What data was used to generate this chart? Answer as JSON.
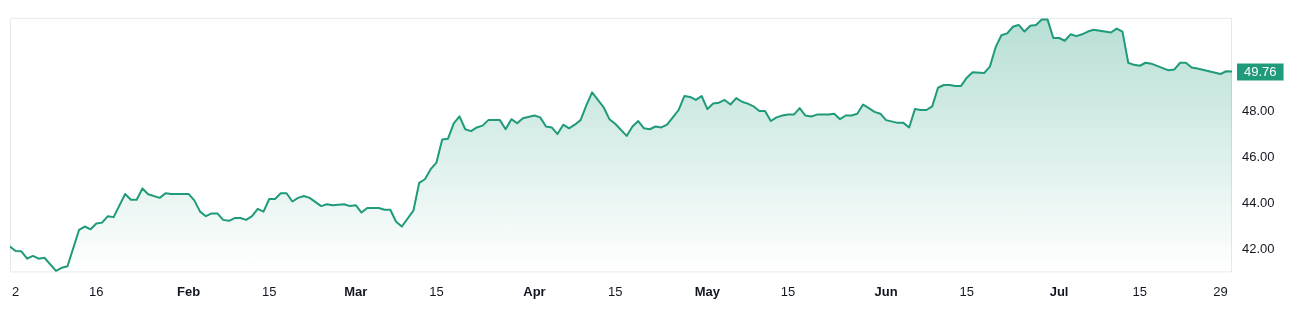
{
  "chart_data": {
    "type": "area",
    "x": [
      "--01-01",
      "--01-02",
      "--01-03",
      "--01-04",
      "--01-05",
      "--01-06",
      "--01-07",
      "--01-09",
      "--01-10",
      "--01-11",
      "--01-13",
      "--01-14",
      "--01-15",
      "--01-16",
      "--01-17",
      "--01-18",
      "--01-19",
      "--01-21",
      "--01-22",
      "--01-23",
      "--01-24",
      "--01-25",
      "--01-27",
      "--01-28",
      "--01-29",
      "--02-01",
      "--02-02",
      "--02-03",
      "--02-04",
      "--02-05",
      "--02-06",
      "--02-07",
      "--02-08",
      "--02-09",
      "--02-10",
      "--02-11",
      "--02-12",
      "--02-13",
      "--02-14",
      "--02-15",
      "--02-16",
      "--02-17",
      "--02-18",
      "--02-19",
      "--02-20",
      "--02-21",
      "--02-22",
      "--02-24",
      "--02-25",
      "--02-26",
      "--02-28",
      "--02-29",
      "--03-01",
      "--03-02",
      "--03-03",
      "--03-05",
      "--03-06",
      "--03-07",
      "--03-08",
      "--03-09",
      "--03-11",
      "--03-12",
      "--03-13",
      "--03-14",
      "--03-15",
      "--03-16",
      "--03-17",
      "--03-18",
      "--03-19",
      "--03-20",
      "--03-21",
      "--03-22",
      "--03-23",
      "--03-24",
      "--03-26",
      "--03-27",
      "--03-28",
      "--03-29",
      "--03-30",
      "--04-01",
      "--04-02",
      "--04-03",
      "--04-04",
      "--04-05",
      "--04-06",
      "--04-07",
      "--04-08",
      "--04-09",
      "--04-10",
      "--04-11",
      "--04-12",
      "--04-13",
      "--04-14",
      "--04-15",
      "--04-17",
      "--04-18",
      "--04-19",
      "--04-20",
      "--04-21",
      "--04-22",
      "--04-23",
      "--04-24",
      "--04-25",
      "--04-26",
      "--04-27",
      "--04-28",
      "--04-29",
      "--04-30",
      "--05-01",
      "--05-02",
      "--05-03",
      "--05-04",
      "--05-05",
      "--05-06",
      "--05-07",
      "--05-08",
      "--05-09",
      "--05-10",
      "--05-11",
      "--05-12",
      "--05-13",
      "--05-14",
      "--05-15",
      "--05-16",
      "--05-17",
      "--05-18",
      "--05-19",
      "--05-20",
      "--05-22",
      "--05-23",
      "--05-24",
      "--05-25",
      "--05-26",
      "--05-27",
      "--05-28",
      "--05-29",
      "--05-30",
      "--05-31",
      "--06-01",
      "--06-03",
      "--06-04",
      "--06-05",
      "--06-06",
      "--06-07",
      "--06-08",
      "--06-09",
      "--06-10",
      "--06-11",
      "--06-12",
      "--06-13",
      "--06-14",
      "--06-15",
      "--06-16",
      "--06-18",
      "--06-19",
      "--06-20",
      "--06-21",
      "--06-22",
      "--06-23",
      "--06-24",
      "--06-25",
      "--06-26",
      "--06-27",
      "--06-28",
      "--06-29",
      "--06-30",
      "--07-01",
      "--07-02",
      "--07-03",
      "--07-04",
      "--07-05",
      "--07-06",
      "--07-07",
      "--07-10",
      "--07-11",
      "--07-12",
      "--07-13",
      "--07-14",
      "--07-15",
      "--07-16",
      "--07-17",
      "--07-20",
      "--07-21",
      "--07-22",
      "--07-23",
      "--07-24",
      "--07-25",
      "--07-29",
      "--07-30",
      "--07-31"
    ],
    "series": [
      {
        "color": "#1f9a7b",
        "values": [
          42.13,
          41.93,
          41.92,
          41.6,
          41.72,
          41.6,
          41.64,
          41.07,
          41.2,
          41.27,
          42.85,
          43.0,
          42.88,
          43.13,
          43.17,
          43.45,
          43.41,
          44.42,
          44.17,
          44.17,
          44.66,
          44.41,
          44.25,
          44.45,
          44.42,
          44.42,
          44.14,
          43.65,
          43.45,
          43.57,
          43.57,
          43.29,
          43.25,
          43.37,
          43.37,
          43.29,
          43.45,
          43.77,
          43.65,
          44.2,
          44.2,
          44.45,
          44.45,
          44.09,
          44.25,
          44.33,
          44.25,
          43.89,
          43.97,
          43.93,
          43.97,
          43.89,
          43.93,
          43.61,
          43.81,
          43.81,
          43.73,
          43.73,
          43.21,
          43.0,
          43.69,
          44.9,
          45.06,
          45.5,
          45.79,
          46.79,
          46.83,
          47.5,
          47.8,
          47.24,
          47.16,
          47.32,
          47.4,
          47.64,
          47.64,
          47.24,
          47.68,
          47.5,
          47.72,
          47.84,
          47.76,
          47.36,
          47.32,
          47.03,
          47.44,
          47.28,
          47.44,
          47.64,
          48.28,
          48.85,
          48.52,
          48.2,
          47.68,
          47.48,
          46.95,
          47.36,
          47.6,
          47.28,
          47.24,
          47.36,
          47.32,
          47.44,
          47.76,
          48.08,
          48.69,
          48.65,
          48.52,
          48.69,
          48.12,
          48.36,
          48.4,
          48.52,
          48.32,
          48.6,
          48.44,
          48.36,
          48.24,
          48.04,
          48.04,
          47.6,
          47.76,
          47.84,
          47.88,
          47.88,
          48.16,
          47.84,
          47.8,
          47.88,
          47.88,
          47.92,
          47.68,
          47.84,
          47.84,
          47.92,
          48.32,
          48.16,
          48.0,
          47.92,
          47.64,
          47.52,
          47.52,
          47.32,
          48.12,
          48.08,
          48.08,
          48.24,
          49.05,
          49.17,
          49.17,
          49.13,
          49.13,
          49.49,
          49.73,
          49.69,
          49.97,
          50.82,
          51.34,
          51.42,
          51.71,
          51.79,
          51.5,
          51.75,
          51.79,
          52.03,
          52.03,
          51.22,
          51.22,
          51.1,
          51.38,
          51.3,
          51.38,
          51.5,
          51.58,
          51.46,
          51.63,
          51.5,
          50.14,
          50.05,
          50.01,
          50.14,
          50.1,
          49.81,
          49.85,
          50.14,
          50.14,
          49.93,
          49.89,
          49.65,
          49.77,
          49.76
        ]
      }
    ],
    "xlim": [
      "--01-01",
      "--07-31"
    ],
    "xticks": [
      {
        "value": "--01-02",
        "label": "2"
      },
      {
        "value": "--01-16",
        "label": "16"
      },
      {
        "value": "--02-01",
        "label": "Feb"
      },
      {
        "value": "--02-15",
        "label": "15"
      },
      {
        "value": "--03-01",
        "label": "Mar"
      },
      {
        "value": "--03-15",
        "label": "15"
      },
      {
        "value": "--04-01",
        "label": "Apr"
      },
      {
        "value": "--04-15",
        "label": "15"
      },
      {
        "value": "--05-01",
        "label": "May"
      },
      {
        "value": "--05-15",
        "label": "15"
      },
      {
        "value": "--06-01",
        "label": "Jun"
      },
      {
        "value": "--06-15",
        "label": "15"
      },
      {
        "value": "--07-01",
        "label": "Jul"
      },
      {
        "value": "--07-15",
        "label": "15"
      },
      {
        "value": "--07-29",
        "label": "29"
      }
    ],
    "ylim": [
      41.0,
      52.1
    ],
    "yticks": [
      {
        "value": 42,
        "label": "42.00"
      },
      {
        "value": 44,
        "label": "44.00"
      },
      {
        "value": 46,
        "label": "46.00"
      },
      {
        "value": 48,
        "label": "48.00"
      }
    ],
    "annotations": [
      {
        "text": "49.76",
        "x": "--07-31",
        "y": 49.76
      }
    ]
  }
}
